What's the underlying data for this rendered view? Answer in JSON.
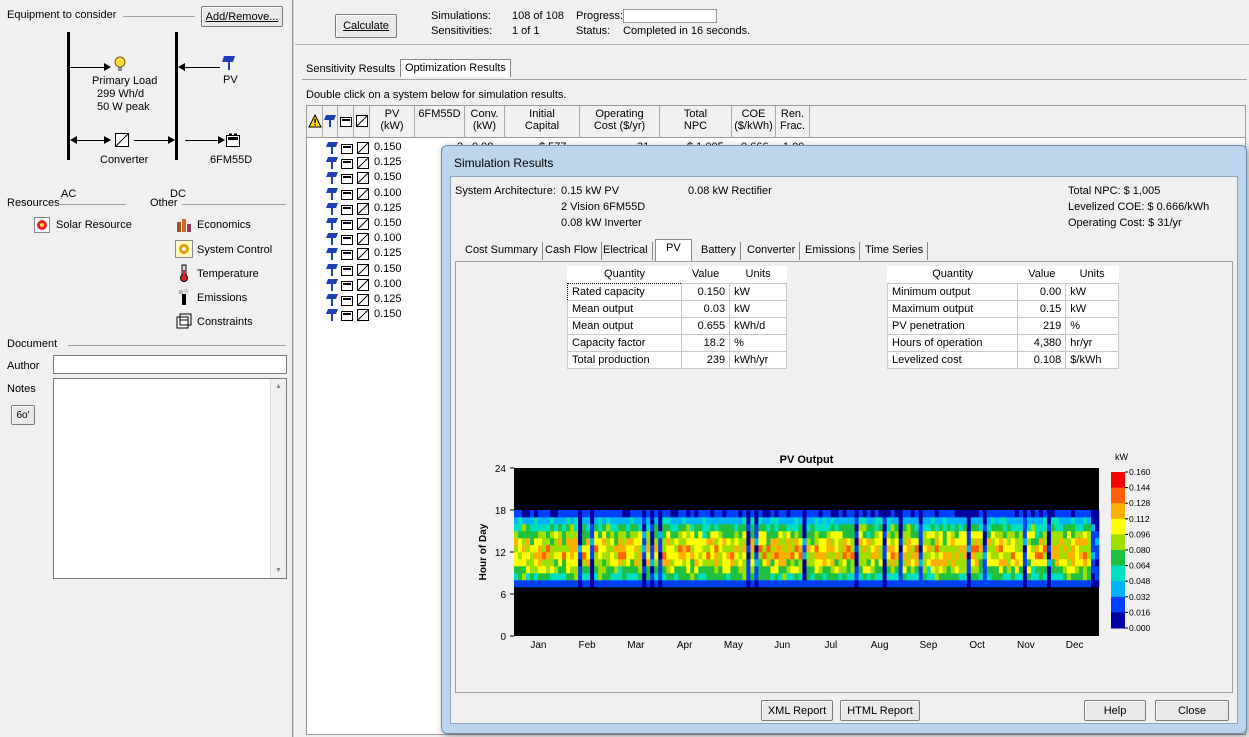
{
  "left": {
    "equipment_label": "Equipment to consider",
    "add_remove": "Add/Remove...",
    "primary_load": "Primary Load",
    "load_detail1": "299 Wh/d",
    "load_detail2": "50 W peak",
    "pv": "PV",
    "converter": "Converter",
    "battery": "6FM55D",
    "ac": "AC",
    "dc": "DC",
    "resources_label": "Resources",
    "other_label": "Other",
    "solar_resource": "Solar Resource",
    "economics": "Economics",
    "system_control": "System Control",
    "temperature": "Temperature",
    "emissions": "Emissions",
    "constraints": "Constraints",
    "document_label": "Document",
    "author_label": "Author",
    "notes_label": "Notes",
    "author_value": ""
  },
  "top": {
    "calculate": "Calculate",
    "simulations_label": "Simulations:",
    "simulations_value": "108 of 108",
    "sensitivities_label": "Sensitivities:",
    "sensitivities_value": "1 of 1",
    "progress_label": "Progress:",
    "status_label": "Status:",
    "status_value": "Completed in 16 seconds."
  },
  "results": {
    "tabs": [
      "Sensitivity Results",
      "Optimization Results"
    ],
    "hint": "Double click on a system below for simulation results.",
    "columns": {
      "pv": [
        "PV",
        "(kW)"
      ],
      "battery": [
        "6FM55D",
        ""
      ],
      "conv": [
        "Conv.",
        "(kW)"
      ],
      "capital": [
        "Initial",
        "Capital"
      ],
      "opcost": [
        "Operating",
        "Cost ($/yr)"
      ],
      "npc": [
        "Total",
        "NPC"
      ],
      "coe": [
        "COE",
        "($/kWh)"
      ],
      "ren": [
        "Ren.",
        "Frac."
      ]
    },
    "first_row": {
      "pv": "0.150",
      "battery": "2",
      "conv": "0.08",
      "capital": "$ 577",
      "opcost": "31",
      "npc": "$ 1,005",
      "coe": "0.666",
      "ren": "1.00"
    },
    "pv_values": [
      "0.150",
      "0.125",
      "0.150",
      "0.100",
      "0.125",
      "0.150",
      "0.100",
      "0.125",
      "0.150",
      "0.100",
      "0.125",
      "0.150"
    ]
  },
  "dialog": {
    "title": "Simulation Results",
    "arch_label": "System Architecture:",
    "arch1": "0.15 kW PV",
    "arch2": "2 Vision 6FM55D",
    "arch3": "0.08 kW Inverter",
    "arch4": "0.08 kW Rectifier",
    "total_npc": "Total NPC: $ 1,005",
    "levelized_coe": "Levelized COE: $ 0.666/kWh",
    "operating_cost": "Operating Cost: $ 31/yr",
    "tabs": [
      "Cost Summary",
      "Cash Flow",
      "Electrical",
      "PV",
      "Battery",
      "Converter",
      "Emissions",
      "Time Series"
    ],
    "table_left": {
      "headers": [
        "Quantity",
        "Value",
        "Units"
      ],
      "rows": [
        [
          "Rated capacity",
          "0.150",
          "kW"
        ],
        [
          "Mean output",
          "0.03",
          "kW"
        ],
        [
          "Mean output",
          "0.655",
          "kWh/d"
        ],
        [
          "Capacity factor",
          "18.2",
          "%"
        ],
        [
          "Total production",
          "239",
          "kWh/yr"
        ]
      ]
    },
    "table_right": {
      "headers": [
        "Quantity",
        "Value",
        "Units"
      ],
      "rows": [
        [
          "Minimum output",
          "0.00",
          "kW"
        ],
        [
          "Maximum output",
          "0.15",
          "kW"
        ],
        [
          "PV penetration",
          "219",
          "%"
        ],
        [
          "Hours of operation",
          "4,380",
          "hr/yr"
        ],
        [
          "Levelized cost",
          "0.108",
          "$/kWh"
        ]
      ]
    },
    "buttons": {
      "xml": "XML Report",
      "html": "HTML Report",
      "help": "Help",
      "close": "Close"
    }
  },
  "chart_data": {
    "type": "heatmap",
    "title": "PV Output",
    "ylabel": "Hour of Day",
    "xlabel": "",
    "x_ticks": [
      "Jan",
      "Feb",
      "Mar",
      "Apr",
      "May",
      "Jun",
      "Jul",
      "Aug",
      "Sep",
      "Oct",
      "Nov",
      "Dec"
    ],
    "y_ticks": [
      "0",
      "6",
      "12",
      "18",
      "24"
    ],
    "ylim": [
      0,
      24
    ],
    "colorbar_unit": "kW",
    "colorbar_ticks": [
      "0.160",
      "0.144",
      "0.128",
      "0.112",
      "0.096",
      "0.080",
      "0.064",
      "0.048",
      "0.032",
      "0.016",
      "0.000"
    ],
    "colorbar_range": [
      0,
      0.16
    ],
    "daylight_hours": [
      7,
      17
    ],
    "peak_hour": 12,
    "typical_peak_kw": 0.112
  }
}
